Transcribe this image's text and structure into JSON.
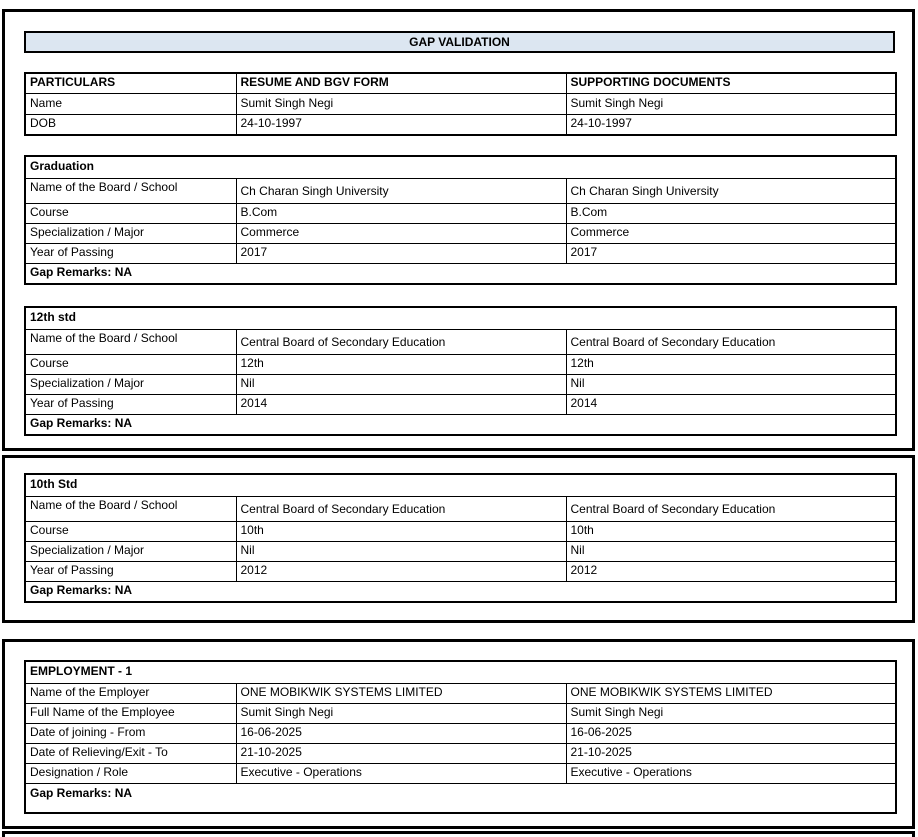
{
  "title": "GAP VALIDATION",
  "colors": {
    "header_fill": "#DCE6F1",
    "border": "#000000"
  },
  "particulars": {
    "headers": [
      "PARTICULARS",
      "RESUME AND BGV FORM",
      "SUPPORTING DOCUMENTS"
    ],
    "rows": [
      {
        "label": "Name",
        "resume": "Sumit Singh Negi",
        "supporting": "Sumit Singh Negi"
      },
      {
        "label": "DOB",
        "resume": "24-10-1997",
        "supporting": "24-10-1997"
      }
    ]
  },
  "sections": [
    {
      "title": "Graduation",
      "rows": [
        {
          "label": "Name of the Board / School",
          "resume": "Ch Charan Singh University",
          "supporting": "Ch Charan Singh University"
        },
        {
          "label": "Course",
          "resume": "B.Com",
          "supporting": "B.Com"
        },
        {
          "label": "Specialization / Major",
          "resume": "Commerce",
          "supporting": "Commerce"
        },
        {
          "label": "Year of Passing",
          "resume": "2017",
          "supporting": "2017"
        }
      ],
      "gap_remarks": "Gap Remarks: NA"
    },
    {
      "title": "12th std",
      "rows": [
        {
          "label": "Name of the Board / School",
          "resume": "Central Board of Secondary Education",
          "supporting": "Central Board of Secondary Education"
        },
        {
          "label": "Course",
          "resume": "12th",
          "supporting": "12th"
        },
        {
          "label": "Specialization / Major",
          "resume": "Nil",
          "supporting": "Nil"
        },
        {
          "label": "Year of Passing",
          "resume": "2014",
          "supporting": "2014"
        }
      ],
      "gap_remarks": "Gap Remarks: NA"
    },
    {
      "title": "10th Std",
      "rows": [
        {
          "label": "Name of the Board / School",
          "resume": "Central Board of Secondary Education",
          "supporting": "Central Board of Secondary Education"
        },
        {
          "label": "Course",
          "resume": "10th",
          "supporting": "10th"
        },
        {
          "label": "Specialization / Major",
          "resume": "Nil",
          "supporting": "Nil"
        },
        {
          "label": "Year of Passing",
          "resume": "2012",
          "supporting": "2012"
        }
      ],
      "gap_remarks": "Gap Remarks: NA"
    },
    {
      "title": "EMPLOYMENT - 1",
      "rows": [
        {
          "label": "Name of the Employer",
          "resume": "ONE MOBIKWIK SYSTEMS LIMITED",
          "supporting": "ONE MOBIKWIK SYSTEMS LIMITED"
        },
        {
          "label": "Full Name of the Employee",
          "resume": "Sumit Singh Negi",
          "supporting": "Sumit Singh Negi"
        },
        {
          "label": "Date of joining - From",
          "resume": "16-06-2025",
          "supporting": "16-06-2025"
        },
        {
          "label": "Date of Relieving/Exit - To",
          "resume": "21-10-2025",
          "supporting": "21-10-2025"
        },
        {
          "label": "Designation / Role",
          "resume": "Executive - Operations",
          "supporting": "Executive - Operations"
        }
      ],
      "gap_remarks": "Gap Remarks: NA"
    }
  ]
}
